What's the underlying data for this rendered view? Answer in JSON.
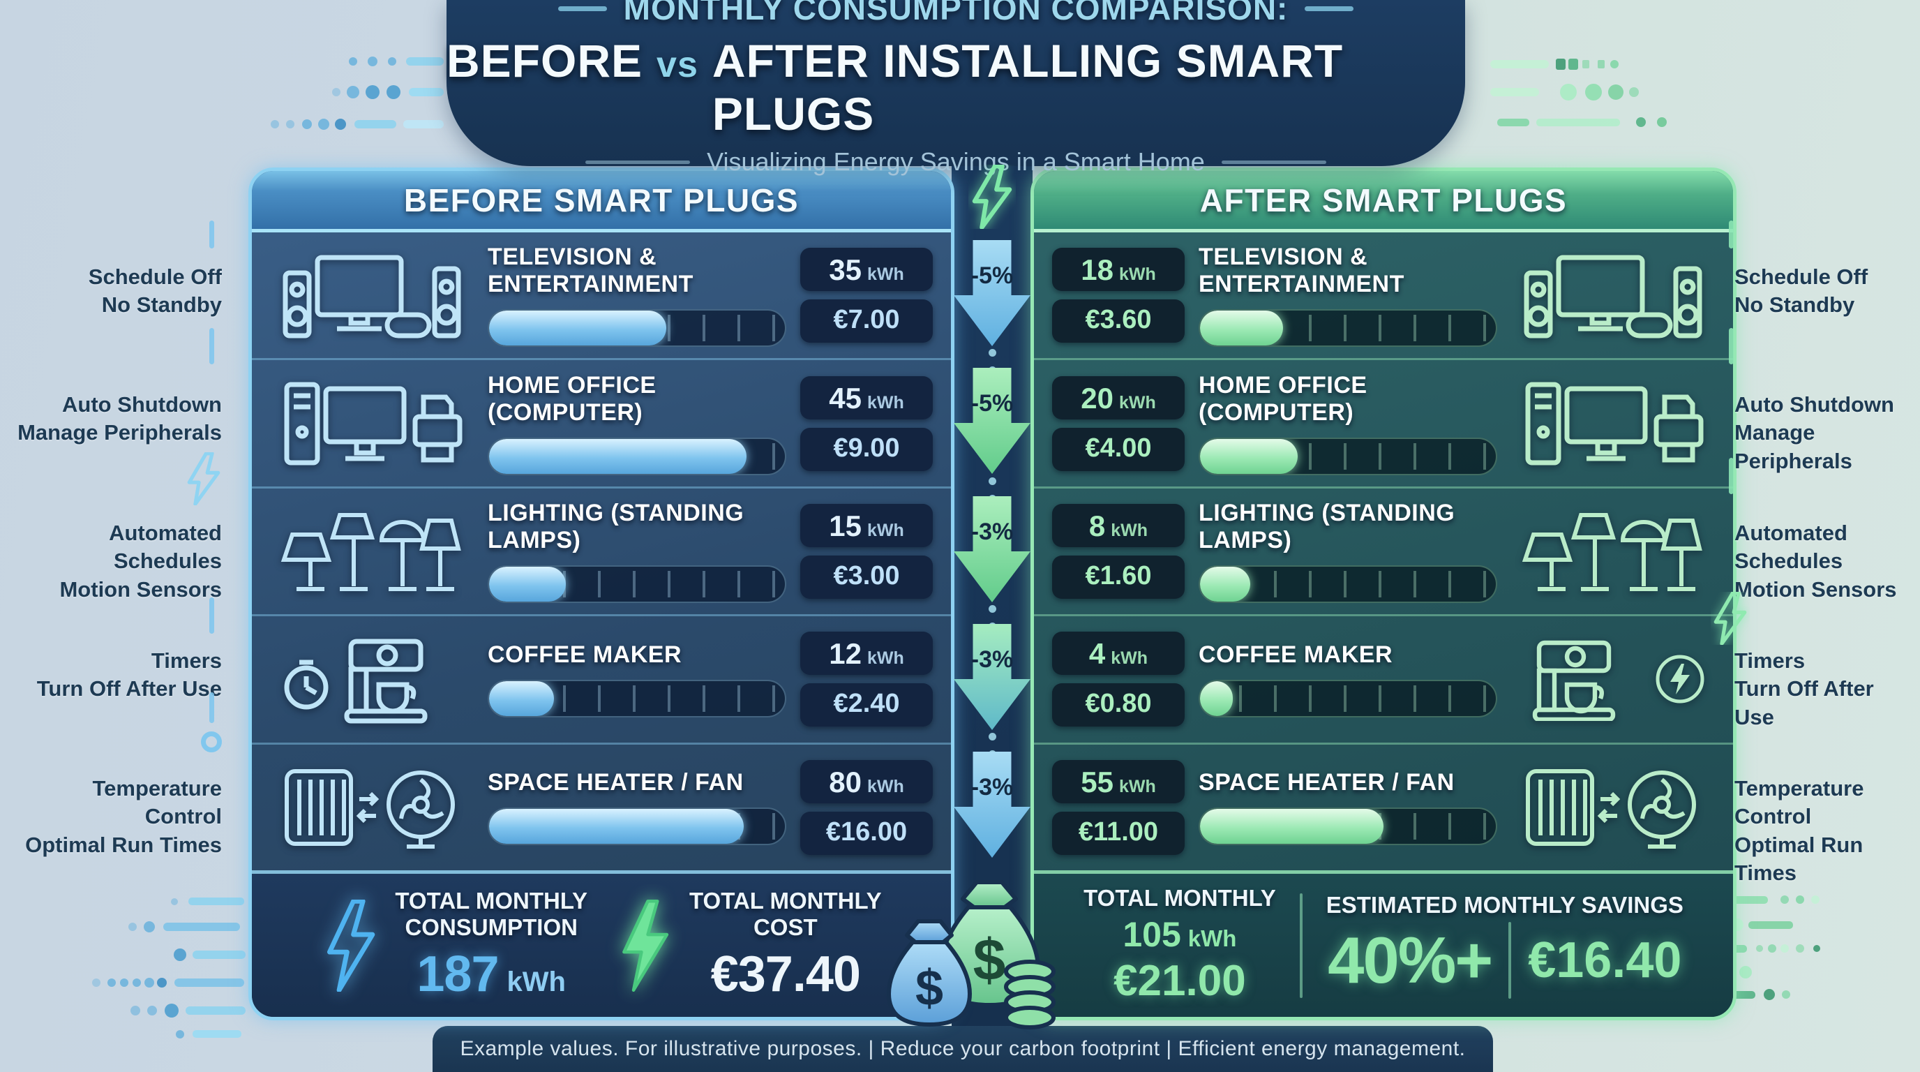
{
  "title": {
    "kicker": "MONTHLY CONSUMPTION COMPARISON:",
    "main_before": "BEFORE",
    "main_vs": "vs",
    "main_after": "AFTER INSTALLING SMART PLUGS",
    "subtitle": "Visualizing Energy Savings in a Smart Home"
  },
  "units": {
    "kwh": "kWh"
  },
  "panels": {
    "before": {
      "header": "BEFORE SMART PLUGS",
      "rows": [
        {
          "name": "TELEVISION & ENTERTAINMENT",
          "kwh": "35",
          "cost": "€7.00",
          "fill": 60
        },
        {
          "name": "HOME OFFICE (COMPUTER)",
          "kwh": "45",
          "cost": "€9.00",
          "fill": 87
        },
        {
          "name": "LIGHTING (STANDING LAMPS)",
          "kwh": "15",
          "cost": "€3.00",
          "fill": 26
        },
        {
          "name": "COFFEE MAKER",
          "kwh": "12",
          "cost": "€2.40",
          "fill": 22
        },
        {
          "name": "SPACE HEATER / FAN",
          "kwh": "80",
          "cost": "€16.00",
          "fill": 86
        }
      ],
      "totals": {
        "consumption_label_1": "TOTAL MONTHLY",
        "consumption_label_2": "CONSUMPTION",
        "consumption_value": "187",
        "cost_label_1": "TOTAL MONTHLY",
        "cost_label_2": "COST",
        "cost_value": "€37.40"
      }
    },
    "after": {
      "header": "AFTER SMART PLUGS",
      "rows": [
        {
          "name": "TELEVISION & ENTERTAINMENT",
          "kwh": "18",
          "cost": "€3.60",
          "fill": 28
        },
        {
          "name": "HOME OFFICE (COMPUTER)",
          "kwh": "20",
          "cost": "€4.00",
          "fill": 33
        },
        {
          "name": "LIGHTING (STANDING LAMPS)",
          "kwh": "8",
          "cost": "€1.60",
          "fill": 17
        },
        {
          "name": "COFFEE MAKER",
          "kwh": "4",
          "cost": "€0.80",
          "fill": 11
        },
        {
          "name": "SPACE HEATER / FAN",
          "kwh": "55",
          "cost": "€11.00",
          "fill": 62
        }
      ],
      "totals": {
        "label": "TOTAL MONTHLY",
        "kwh_value": "105",
        "cost": "€21.00",
        "savings_label": "ESTIMATED MONTHLY SAVINGS",
        "savings_pct": "40%+",
        "savings_amount": "€16.40"
      }
    }
  },
  "center": {
    "arrows": [
      "-5%",
      "-5%",
      "-3%",
      "-3%",
      "-3%"
    ]
  },
  "side_notes": [
    {
      "l1": "Schedule Off",
      "l2": "No Standby"
    },
    {
      "l1": "Auto Shutdown",
      "l2": "Manage Peripherals"
    },
    {
      "l1": "Automated Schedules",
      "l2": "Motion Sensors"
    },
    {
      "l1": "Timers",
      "l2": "Turn Off After Use"
    },
    {
      "l1": "Temperature Control",
      "l2": "Optimal Run Times"
    }
  ],
  "footer": {
    "text": "Example values. For illustrative purposes.  |  Reduce your carbon footprint  |  Efficient energy management."
  },
  "colors": {
    "accent_blue": "#62b9ef",
    "accent_green": "#90e8ab",
    "navy": "#17304e",
    "panel_blue_border": "#8ed2f2",
    "panel_green_border": "#96e8b4"
  },
  "chart_data": {
    "type": "bar",
    "title": "Monthly Consumption Comparison: Before vs After Installing Smart Plugs",
    "subtitle": "Visualizing Energy Savings in a Smart Home",
    "categories": [
      "Television & Entertainment",
      "Home Office (Computer)",
      "Lighting (Standing Lamps)",
      "Coffee Maker",
      "Space Heater / Fan"
    ],
    "series": [
      {
        "name": "Before Smart Plugs consumption (kWh)",
        "values": [
          35,
          45,
          15,
          12,
          80
        ]
      },
      {
        "name": "After Smart Plugs consumption (kWh)",
        "values": [
          18,
          20,
          8,
          4,
          55
        ]
      },
      {
        "name": "Before Smart Plugs cost (EUR)",
        "values": [
          7.0,
          9.0,
          3.0,
          2.4,
          16.0
        ]
      },
      {
        "name": "After Smart Plugs cost (EUR)",
        "values": [
          3.6,
          4.0,
          1.6,
          0.8,
          11.0
        ]
      }
    ],
    "row_reductions": [
      "-5%",
      "-5%",
      "-3%",
      "-3%",
      "-3%"
    ],
    "totals": {
      "before_kwh": 187,
      "before_cost_eur": 37.4,
      "after_kwh": 105,
      "after_cost_eur": 21.0,
      "savings_percent": "40%+",
      "savings_eur": 16.4
    },
    "legend_position": "panel headers",
    "grid": false
  }
}
